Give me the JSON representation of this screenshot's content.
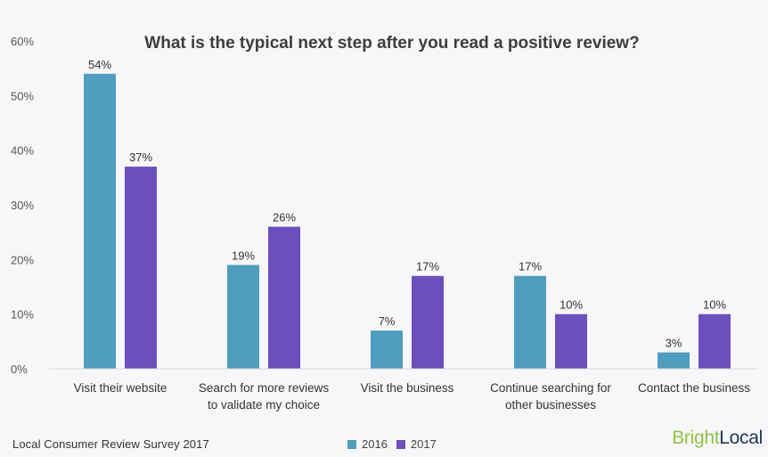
{
  "chart_data": {
    "type": "bar",
    "title": "What is the typical next step after you read a positive review?",
    "categories": [
      [
        "Visit their website"
      ],
      [
        "Search for more reviews",
        "to validate my choice"
      ],
      [
        "Visit the business"
      ],
      [
        "Continue searching for",
        "other businesses"
      ],
      [
        "Contact the business"
      ]
    ],
    "series": [
      {
        "name": "2016",
        "color": "#4f9dbf",
        "values": [
          54,
          19,
          7,
          17,
          3
        ],
        "labels": [
          "54%",
          "19%",
          "7%",
          "17%",
          "3%"
        ]
      },
      {
        "name": "2017",
        "color": "#6a4fbf",
        "values": [
          37,
          26,
          17,
          10,
          10
        ],
        "labels": [
          "37%",
          "26%",
          "17%",
          "10%",
          "10%"
        ]
      }
    ],
    "ylim": [
      0,
      60
    ],
    "yticks": [
      "0%",
      "10%",
      "20%",
      "30%",
      "40%",
      "50%",
      "60%"
    ],
    "grid": false,
    "legend_position": "bottom-center"
  },
  "footer": {
    "source": "Local Consumer Review Survey 2017",
    "brand_part1": "Bright",
    "brand_part2": "Local"
  }
}
